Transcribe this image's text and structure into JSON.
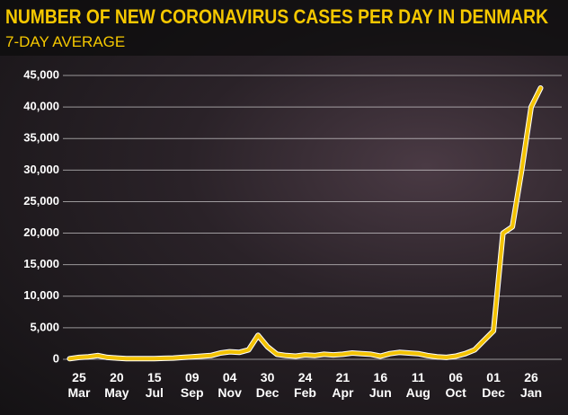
{
  "chart_data": {
    "type": "line",
    "title": "NUMBER OF NEW CORONAVIRUS CASES PER DAY IN DENMARK",
    "subtitle": "7-DAY AVERAGE",
    "categories": [
      null,
      "25\nMar",
      null,
      null,
      null,
      "20\nMay",
      null,
      null,
      null,
      "15\nJul",
      null,
      null,
      null,
      "09\nSep",
      null,
      null,
      null,
      "04\nNov",
      null,
      null,
      null,
      "30\nDec",
      null,
      null,
      null,
      "24\nFeb",
      null,
      null,
      null,
      "21\nApr",
      null,
      null,
      null,
      "16\nJun",
      null,
      null,
      null,
      "11\nAug",
      null,
      null,
      null,
      "06\nOct",
      null,
      null,
      null,
      "01\nDec",
      null,
      null,
      null,
      "26\nJan",
      null
    ],
    "series": [
      {
        "color": "#f2c200",
        "values": [
          100,
          300,
          400,
          600,
          300,
          200,
          100,
          100,
          100,
          100,
          150,
          200,
          300,
          400,
          500,
          600,
          1000,
          1200,
          1100,
          1500,
          3800,
          2000,
          800,
          600,
          500,
          700,
          600,
          800,
          700,
          800,
          1000,
          900,
          800,
          500,
          900,
          1100,
          1000,
          900,
          600,
          400,
          300,
          500,
          900,
          1500,
          3000,
          4500,
          20000,
          21000,
          30000,
          40000,
          43000
        ]
      }
    ],
    "ylim": [
      0,
      45000
    ],
    "yticks": [
      0,
      {
        "value": 5000,
        "label": "5,000"
      },
      {
        "value": 10000,
        "label": "10,000"
      },
      {
        "value": 15000,
        "label": "15,000"
      },
      {
        "value": 20000,
        "label": "20,000"
      },
      {
        "value": 25000,
        "label": "25,000"
      },
      {
        "value": 30000,
        "label": "30,000"
      },
      {
        "value": 35000,
        "label": "35,000"
      },
      {
        "value": 40000,
        "label": "40,000"
      },
      {
        "value": 45000,
        "label": "45,000"
      }
    ],
    "grid": true
  }
}
